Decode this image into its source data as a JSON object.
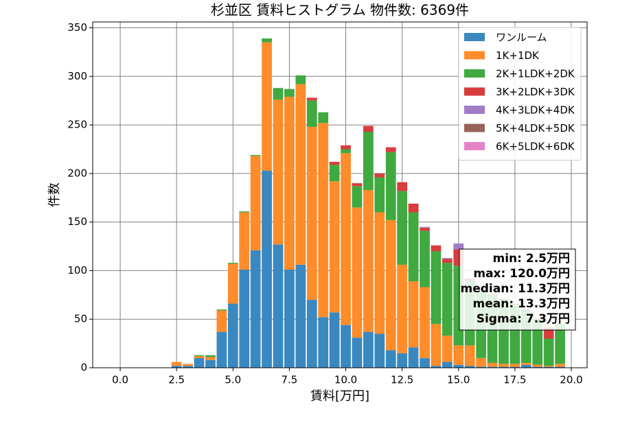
{
  "chart_data": {
    "type": "histogram",
    "title": "杉並区 賃料ヒストグラム 物件数: 6369件",
    "xlabel": "賃料[万円]",
    "ylabel": "件数",
    "bins": [
      2.25,
      2.75,
      3.25,
      3.75,
      4.25,
      4.75,
      5.25,
      5.75,
      6.25,
      6.75,
      7.25,
      7.75,
      8.25,
      8.75,
      9.25,
      9.75,
      10.25,
      10.75,
      11.25,
      11.75,
      12.25,
      12.75,
      13.25,
      13.75,
      14.25,
      14.75,
      15.25,
      15.75,
      16.25,
      16.75,
      17.25,
      17.75,
      18.25,
      18.75,
      19.25,
      19.75
    ],
    "series": [
      {
        "name": "ワンルーム",
        "color": "#3a88c0",
        "values": [
          2,
          2,
          10,
          8,
          37,
          66,
          101,
          121,
          203,
          127,
          101,
          106,
          70,
          52,
          57,
          44,
          31,
          37,
          35,
          18,
          15,
          21,
          10,
          2,
          6,
          3,
          2,
          1,
          1,
          1,
          1,
          3,
          1,
          1,
          1
        ]
      },
      {
        "name": "1K+1DK",
        "color": "#fe8c2a",
        "values": [
          4,
          2,
          2,
          3,
          22,
          41,
          59,
          97,
          132,
          149,
          178,
          186,
          178,
          200,
          135,
          177,
          134,
          146,
          125,
          134,
          91,
          68,
          73,
          43,
          27,
          20,
          21,
          9,
          4,
          3,
          3,
          2,
          2,
          1,
          3
        ]
      },
      {
        "name": "2K+1LDK+2DK",
        "color": "#40a940",
        "values": [
          0,
          0,
          1,
          2,
          1,
          1,
          1,
          1,
          4,
          12,
          8,
          9,
          27,
          11,
          17,
          4,
          22,
          60,
          36,
          70,
          76,
          71,
          58,
          75,
          75,
          82,
          67,
          70,
          70,
          66,
          61,
          55,
          47,
          28,
          41
        ]
      },
      {
        "name": "3K+2LDK+3DK",
        "color": "#d83c3d",
        "values": [
          0,
          0,
          0,
          0,
          0,
          0,
          0,
          0,
          0,
          0,
          0,
          0,
          3,
          0,
          3,
          4,
          3,
          6,
          4,
          5,
          9,
          9,
          3,
          6,
          4,
          17,
          2,
          1,
          1,
          1,
          1,
          1,
          1,
          12,
          0
        ]
      },
      {
        "name": "4K+3LDK+4DK",
        "color": "#a07cc5",
        "values": [
          0,
          0,
          0,
          0,
          0,
          0,
          0,
          0,
          0,
          0,
          0,
          0,
          0,
          0,
          0,
          0,
          0,
          0,
          0,
          0,
          0,
          0,
          1,
          0,
          1,
          6,
          0,
          0,
          0,
          0,
          0,
          0,
          0,
          0,
          0
        ]
      },
      {
        "name": "5K+4LDK+5DK",
        "color": "#966459",
        "values": [
          0,
          0,
          0,
          0,
          0,
          0,
          0,
          0,
          0,
          0,
          0,
          0,
          0,
          0,
          0,
          0,
          0,
          0,
          0,
          0,
          0,
          0,
          0,
          0,
          0,
          0,
          0,
          0,
          0,
          0,
          0,
          0,
          0,
          0,
          0
        ]
      },
      {
        "name": "6K+5LDK+6DK",
        "color": "#e683c8",
        "values": [
          0,
          0,
          0,
          0,
          0,
          0,
          0,
          0,
          0,
          0,
          0,
          0,
          0,
          0,
          0,
          0,
          0,
          0,
          0,
          0,
          0,
          0,
          0,
          0,
          0,
          0,
          0,
          0,
          0,
          0,
          0,
          0,
          0,
          0,
          0
        ]
      }
    ],
    "xlim": [
      -1.22,
      20.7
    ],
    "ylim": [
      0,
      356
    ],
    "xticks": [
      {
        "value": 0,
        "label": "0.0"
      },
      2.5,
      {
        "value": 5,
        "label": "5.0"
      },
      7.5,
      {
        "value": 10,
        "label": "10.0"
      },
      12.5,
      {
        "value": 15,
        "label": "15.0"
      },
      17.5,
      {
        "value": 20,
        "label": "20.0"
      }
    ],
    "yticks": [
      0,
      50,
      100,
      150,
      200,
      250,
      300,
      350
    ],
    "grid": true,
    "legend": "upper right",
    "annotation": [
      "min: 2.5万円",
      "max: 120.0万円",
      "median: 11.3万円",
      "mean: 13.3万円",
      "Sigma: 7.3万円"
    ]
  }
}
